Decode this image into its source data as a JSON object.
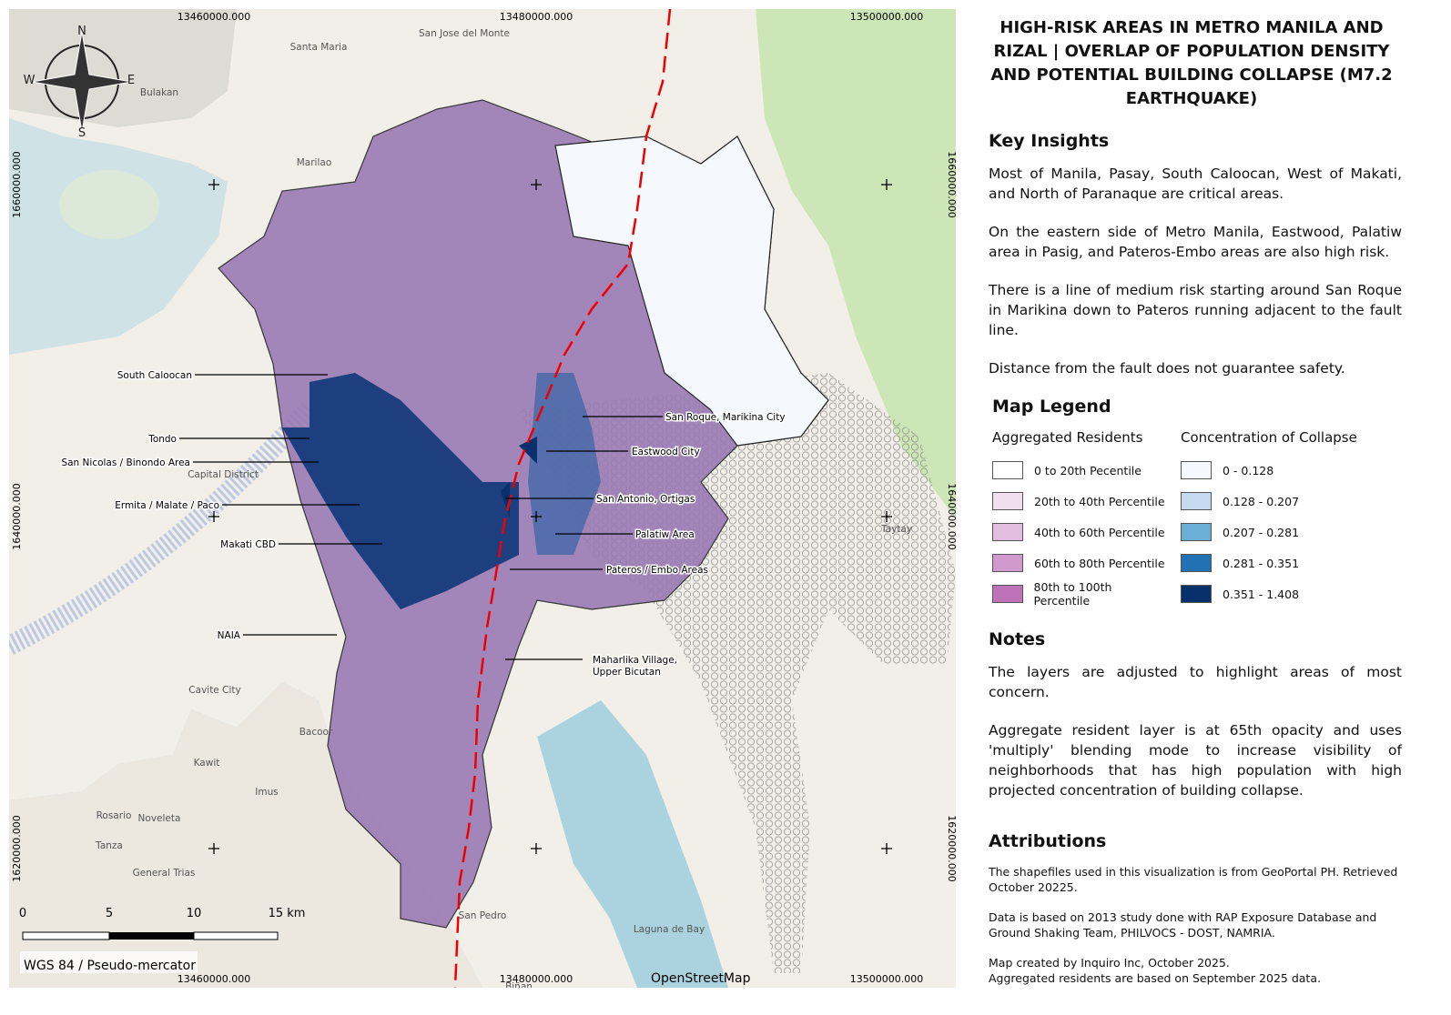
{
  "title": "HIGH-RISK AREAS IN METRO MANILA AND RIZAL | OVERLAP OF POPULATION DENSITY AND POTENTIAL BUILDING COLLAPSE (M7.2 EARTHQUAKE)",
  "key_insights": {
    "heading": "Key Insights",
    "paragraphs": [
      "Most of Manila, Pasay, South Caloocan, West of Makati, and North of Paranaque are critical areas.",
      "On the eastern side of Metro Manila, Eastwood, Palatiw area in Pasig, and Pateros-Embo areas are also high risk.",
      "There is a line of medium risk starting around San Roque in Marikina down to Pateros running adjacent to the fault line.",
      "Distance from the fault does not guarantee safety."
    ]
  },
  "legend": {
    "heading": "Map Legend",
    "groups": [
      {
        "title": "Aggregated Residents",
        "items": [
          {
            "label": "0 to 20th Pecentile",
            "color": "#ffffff"
          },
          {
            "label": "20th to 40th Percentile",
            "color": "#f1dff0"
          },
          {
            "label": "40th to 60th Percentile",
            "color": "#e2bde0"
          },
          {
            "label": "60th to 80th Percentile",
            "color": "#d19ace"
          },
          {
            "label": "80th to 100th Percentile",
            "color": "#c072b9"
          }
        ]
      },
      {
        "title": "Concentration of Collapse",
        "items": [
          {
            "label": "0 - 0.128",
            "color": "#f5f9fe"
          },
          {
            "label": "0.128 - 0.207",
            "color": "#c6dbef"
          },
          {
            "label": "0.207 - 0.281",
            "color": "#6baed6"
          },
          {
            "label": "0.281 - 0.351",
            "color": "#2171b5"
          },
          {
            "label": "0.351 - 1.408",
            "color": "#08306b"
          }
        ]
      }
    ]
  },
  "notes": {
    "heading": "Notes",
    "paragraphs": [
      "The layers are adjusted to highlight areas of most concern.",
      "Aggregate resident layer is at 65th opacity and uses 'multiply' blending mode to increase visibility of neighborhoods that has high population with high projected concentration of building collapse."
    ]
  },
  "attributions": {
    "heading": "Attributions",
    "paragraphs": [
      "The shapefiles used in this visualization is from GeoPortal PH. Retrieved October 20225.",
      "Data is based on 2013 study done with RAP Exposure Database and Ground Shaking Team, PHILVOCS - DOST, NAMRIA.",
      "Map created by Inquiro Inc, October 2025.\nAggregated residents are based on September 2025 data."
    ]
  },
  "map": {
    "callouts": [
      {
        "label": [
          "South Caloocan"
        ]
      },
      {
        "label": [
          "Tondo"
        ]
      },
      {
        "label": [
          "San Nicolas / Binondo Area"
        ]
      },
      {
        "label": [
          "Ermita / Malate / Paco"
        ]
      },
      {
        "label": [
          "Makati CBD"
        ]
      },
      {
        "label": [
          "NAIA"
        ]
      },
      {
        "label": [
          "San Roque, Marikina City"
        ]
      },
      {
        "label": [
          "Eastwood City"
        ]
      },
      {
        "label": [
          "San Antonio, Ortigas"
        ]
      },
      {
        "label": [
          "Palatiw Area"
        ]
      },
      {
        "label": [
          "Pateros / Embo Areas"
        ]
      },
      {
        "label": [
          "Maharlika Village,",
          "Upper Bicutan"
        ]
      }
    ],
    "x_coordinates": [
      "13460000.000",
      "13480000.000",
      "13500000.000"
    ],
    "y_coordinates": [
      "1660000.000",
      "1640000.000",
      "1620000.000"
    ],
    "compass": {
      "n": "N",
      "s": "S",
      "e": "E",
      "w": "W"
    },
    "scale": [
      "0",
      "5",
      "10",
      "15 km"
    ],
    "crs": "WGS 84 / Pseudo-mercator",
    "basemap_credit": "OpenStreetMap",
    "place_labels": [
      "Santa Maria",
      "San Jose del Monte",
      "Bulakan",
      "Marilao",
      "Capital District",
      "Cavite City",
      "Kawit",
      "Bacoor",
      "Imus",
      "Noveleta",
      "Rosario",
      "Tanza",
      "General Trias",
      "San Pedro",
      "Laguna de Bay",
      "Biñan",
      "Taytay"
    ]
  }
}
